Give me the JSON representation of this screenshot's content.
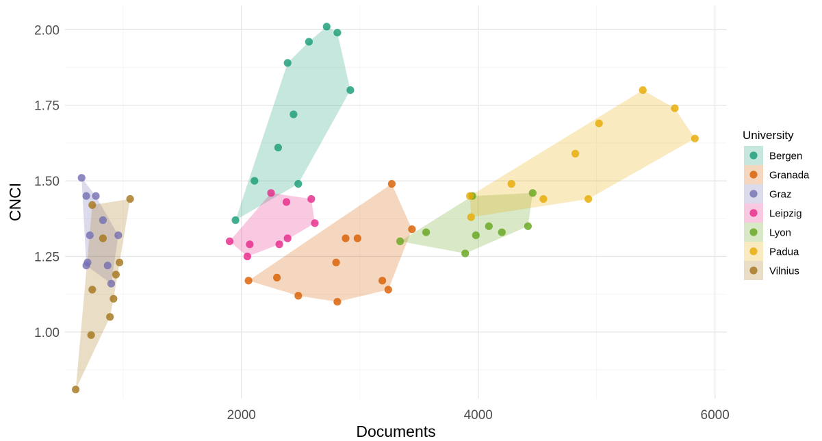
{
  "chart_data": {
    "type": "scatter",
    "title": "",
    "xlabel": "Documents",
    "ylabel": "CNCI",
    "xlim": [
      510,
      6100
    ],
    "ylim": [
      0.78,
      2.08
    ],
    "x_ticks": [
      2000,
      4000,
      6000
    ],
    "x_tick_labels": [
      "2000",
      "4000",
      "6000"
    ],
    "x_minor_ticks": [
      1000,
      3000,
      5000
    ],
    "y_ticks": [
      1.0,
      1.25,
      1.5,
      1.75,
      2.0
    ],
    "y_tick_labels": [
      "1.00",
      "1.25",
      "1.50",
      "1.75",
      "2.00"
    ],
    "y_minor_ticks": [
      0.875,
      1.125,
      1.375,
      1.625,
      1.875
    ],
    "grid": true,
    "hulls": true,
    "legend": {
      "title": "University",
      "position": "right"
    },
    "series": [
      {
        "name": "Bergen",
        "color": "#1b9e77",
        "points": [
          [
            1950,
            1.37
          ],
          [
            2110,
            1.5
          ],
          [
            2310,
            1.61
          ],
          [
            2390,
            1.89
          ],
          [
            2440,
            1.72
          ],
          [
            2480,
            1.49
          ],
          [
            2570,
            1.96
          ],
          [
            2720,
            2.01
          ],
          [
            2810,
            1.99
          ],
          [
            2920,
            1.8
          ]
        ]
      },
      {
        "name": "Granada",
        "color": "#d95f02",
        "points": [
          [
            2060,
            1.17
          ],
          [
            2300,
            1.18
          ],
          [
            2480,
            1.12
          ],
          [
            2800,
            1.23
          ],
          [
            2810,
            1.1
          ],
          [
            2880,
            1.31
          ],
          [
            2980,
            1.31
          ],
          [
            3190,
            1.17
          ],
          [
            3240,
            1.14
          ],
          [
            3270,
            1.49
          ],
          [
            3440,
            1.34
          ]
        ]
      },
      {
        "name": "Graz",
        "color": "#7570b3",
        "points": [
          [
            650,
            1.51
          ],
          [
            690,
            1.45
          ],
          [
            690,
            1.22
          ],
          [
            700,
            1.23
          ],
          [
            720,
            1.32
          ],
          [
            770,
            1.45
          ],
          [
            830,
            1.37
          ],
          [
            870,
            1.22
          ],
          [
            900,
            1.16
          ],
          [
            960,
            1.32
          ]
        ]
      },
      {
        "name": "Leipzig",
        "color": "#e7298a",
        "points": [
          [
            1900,
            1.3
          ],
          [
            2050,
            1.25
          ],
          [
            2070,
            1.29
          ],
          [
            2250,
            1.46
          ],
          [
            2320,
            1.29
          ],
          [
            2380,
            1.43
          ],
          [
            2390,
            1.31
          ],
          [
            2590,
            1.44
          ],
          [
            2620,
            1.36
          ]
        ]
      },
      {
        "name": "Lyon",
        "color": "#66a61e",
        "points": [
          [
            3340,
            1.3
          ],
          [
            3560,
            1.33
          ],
          [
            3890,
            1.26
          ],
          [
            3950,
            1.45
          ],
          [
            3980,
            1.32
          ],
          [
            4090,
            1.35
          ],
          [
            4200,
            1.33
          ],
          [
            4420,
            1.35
          ],
          [
            4460,
            1.46
          ]
        ]
      },
      {
        "name": "Padua",
        "color": "#e6ab02",
        "points": [
          [
            3930,
            1.45
          ],
          [
            3940,
            1.38
          ],
          [
            4280,
            1.49
          ],
          [
            4550,
            1.44
          ],
          [
            4820,
            1.59
          ],
          [
            4930,
            1.44
          ],
          [
            5020,
            1.69
          ],
          [
            5390,
            1.8
          ],
          [
            5660,
            1.74
          ],
          [
            5830,
            1.64
          ]
        ]
      },
      {
        "name": "Vilnius",
        "color": "#a6761d",
        "points": [
          [
            600,
            0.81
          ],
          [
            730,
            0.99
          ],
          [
            740,
            1.14
          ],
          [
            740,
            1.42
          ],
          [
            830,
            1.31
          ],
          [
            890,
            1.05
          ],
          [
            920,
            1.11
          ],
          [
            940,
            1.19
          ],
          [
            970,
            1.23
          ],
          [
            1060,
            1.44
          ]
        ]
      }
    ]
  }
}
